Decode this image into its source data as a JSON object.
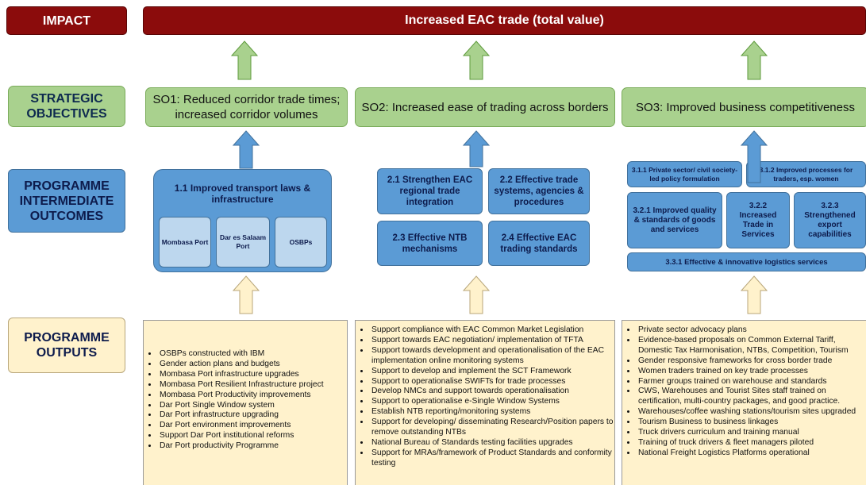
{
  "impact": {
    "label": "IMPACT",
    "text": "Increased EAC trade (total value)"
  },
  "objectives": {
    "label": "STRATEGIC OBJECTIVES",
    "items": [
      "SO1: Reduced corridor trade times; increased corridor volumes",
      "SO2: Increased ease of trading across borders",
      "SO3: Improved business competitiveness"
    ]
  },
  "outcomes": {
    "label": "PROGRAMME INTERMEDIATE OUTCOMES",
    "so1": {
      "title": "1.1 Improved transport laws & infrastructure",
      "parts": [
        "Mombasa Port",
        "Dar es Salaam Port",
        "OSBPs"
      ]
    },
    "so2": [
      "2.1 Strengthen EAC regional trade integration",
      "2.2 Effective trade systems, agencies & procedures",
      "2.3 Effective NTB mechanisms",
      "2.4 Effective EAC trading standards"
    ],
    "so3": [
      "3.1.1 Private sector/ civil society-led policy formulation",
      "3.1.2 Improved processes for traders, esp. women",
      "3.2.1 Improved quality & standards of goods and services",
      "3.2.2 Increased Trade in Services",
      "3.2.3 Strengthened export capabilities",
      "3.3.1 Effective & innovative logistics services"
    ]
  },
  "outputs": {
    "label": "PROGRAMME OUTPUTS",
    "columns": [
      [
        "OSBPs constructed with IBM",
        "Gender action plans and budgets",
        "Mombasa Port infrastructure upgrades",
        "Mombasa Port Resilient Infrastructure project",
        "Mombasa Port Productivity improvements",
        "Dar Port Single Window system",
        "Dar Port infrastructure upgrading",
        "Dar Port environment improvements",
        "Support Dar Port institutional reforms",
        "Dar Port productivity Programme"
      ],
      [
        "Support compliance with EAC Common Market Legislation",
        "Support towards EAC negotiation/ implementation of TFTA",
        "Support towards development and operationalisation of the EAC implementation online monitoring systems",
        "Support to develop and implement the SCT Framework",
        "Support to operationalise SWIFTs for trade processes",
        "Develop NMCs and support towards operationalisation",
        "Support to operationalise e-Single Window Systems",
        "Establish NTB reporting/monitoring systems",
        "Support for developing/ disseminating Research/Position papers to remove outstanding NTBs",
        "National Bureau of Standards testing facilities upgrades",
        "Support for MRAs/framework of Product Standards and conformity testing"
      ],
      [
        "Private sector advocacy plans",
        "Evidence-based proposals on Common External Tariff, Domestic Tax Harmonisation, NTBs, Competition, Tourism",
        "Gender responsive frameworks for cross border trade",
        "Women traders trained on key trade processes",
        "Farmer groups trained on warehouse and standards",
        "CWS, Warehouses and Tourist Sites staff trained on certification, multi-country packages, and good practice.",
        "Warehouses/coffee washing stations/tourism sites upgraded",
        "Tourism Business to business linkages",
        "Truck drivers curriculum and training manual",
        "Training of truck drivers & fleet managers piloted",
        "National Freight Logistics Platforms operational"
      ]
    ]
  }
}
